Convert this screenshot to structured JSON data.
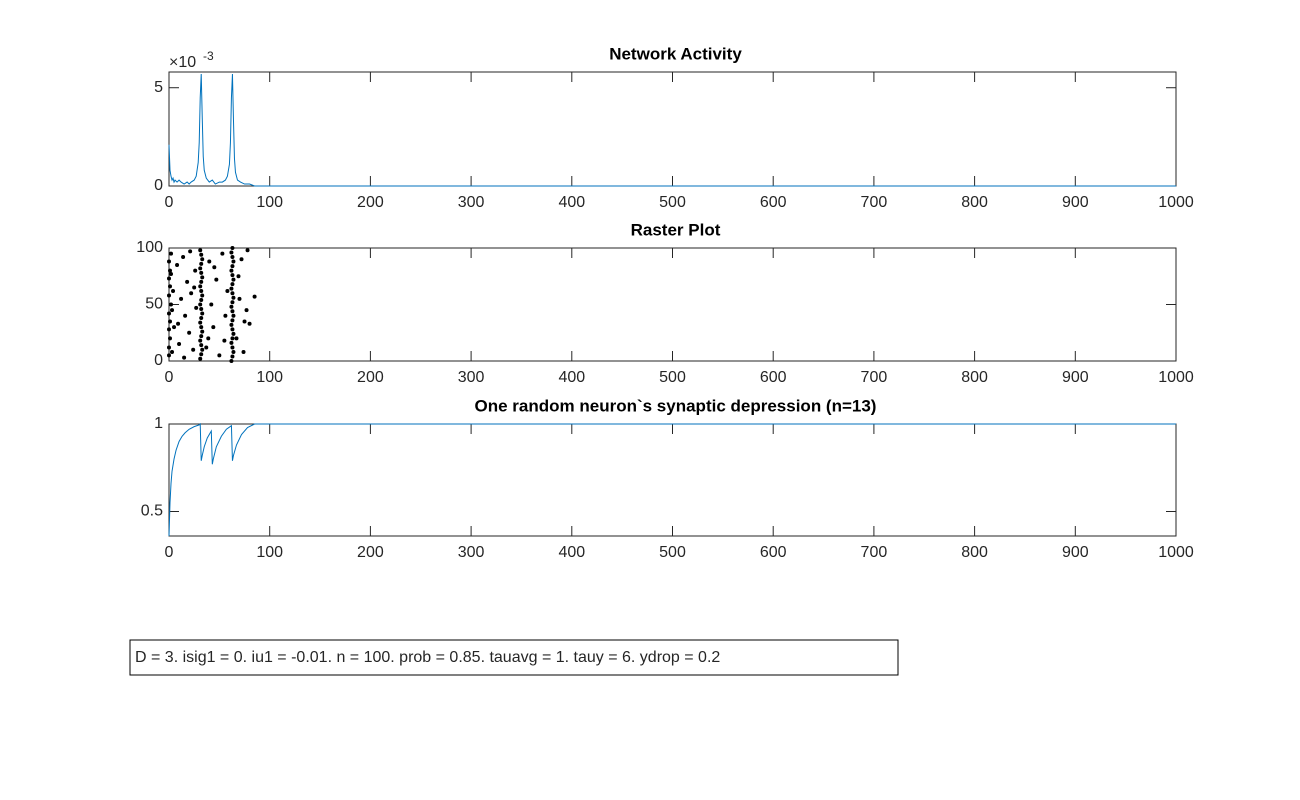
{
  "chart_data": [
    {
      "type": "line",
      "title": "Network Activity",
      "color": "#0072bd",
      "x": [
        0,
        1,
        2,
        3,
        4,
        5,
        6,
        8,
        10,
        12,
        15,
        18,
        20,
        22,
        25,
        27,
        29,
        30,
        31,
        32,
        33,
        34,
        35,
        37,
        40,
        43,
        46,
        50,
        53,
        56,
        58,
        60,
        61,
        62,
        63,
        64,
        65,
        66,
        68,
        71,
        75,
        80,
        85,
        90,
        100,
        1000
      ],
      "values": [
        0.0021,
        0.0008,
        0.0005,
        0.0003,
        0.0004,
        0.0002,
        0.0003,
        0.0002,
        0.0003,
        0.0002,
        0.0001,
        0.0002,
        0.0001,
        0.0002,
        0.0003,
        0.0005,
        0.0012,
        0.0022,
        0.0045,
        0.0057,
        0.0035,
        0.0015,
        0.0008,
        0.0004,
        0.0002,
        0.0003,
        0.0001,
        0.0002,
        0.0002,
        0.0003,
        0.0005,
        0.0011,
        0.0022,
        0.0045,
        0.0057,
        0.0034,
        0.0014,
        0.0007,
        0.0003,
        0.0002,
        0.0001,
        0.0001,
        0,
        0,
        0,
        0
      ],
      "xlim": [
        0,
        1000
      ],
      "xticks": [
        0,
        100,
        200,
        300,
        400,
        500,
        600,
        700,
        800,
        900,
        1000
      ],
      "ylim": [
        0,
        0.0058
      ],
      "yticks": [
        0,
        {
          "value": 0.005,
          "label": "5"
        }
      ],
      "y_multiplier_label": "×10",
      "y_exponent_label": "-3"
    },
    {
      "type": "scatter",
      "title": "Raster Plot",
      "color": "#000000",
      "x": [
        0,
        0,
        1,
        0,
        1,
        0,
        2,
        0,
        1,
        0,
        1,
        0,
        2,
        3,
        4,
        2,
        5,
        3,
        8,
        10,
        12,
        14,
        16,
        18,
        20,
        22,
        24,
        26,
        27,
        9,
        15,
        21,
        25,
        31,
        32,
        33,
        32,
        31,
        32,
        33,
        32,
        31,
        32,
        33,
        32,
        31,
        32,
        33,
        32,
        31,
        32,
        33,
        32,
        31,
        32,
        33,
        32,
        31,
        37,
        40,
        42,
        44,
        47,
        50,
        53,
        56,
        58,
        39,
        45,
        55,
        62,
        63,
        64,
        63,
        62,
        63,
        64,
        63,
        62,
        63,
        64,
        63,
        62,
        63,
        64,
        63,
        62,
        63,
        64,
        63,
        62,
        63,
        64,
        63,
        62,
        63,
        67,
        70,
        72,
        75,
        78,
        80,
        85,
        69,
        74,
        77
      ],
      "y": [
        5,
        12,
        20,
        28,
        35,
        42,
        50,
        58,
        66,
        73,
        80,
        88,
        95,
        8,
        62,
        77,
        30,
        45,
        85,
        15,
        55,
        92,
        40,
        70,
        25,
        60,
        10,
        80,
        47,
        33,
        3,
        97,
        65,
        2,
        6,
        10,
        14,
        18,
        22,
        26,
        30,
        34,
        38,
        42,
        46,
        50,
        54,
        58,
        62,
        66,
        70,
        74,
        78,
        82,
        86,
        90,
        94,
        98,
        12,
        88,
        50,
        30,
        72,
        5,
        95,
        40,
        62,
        20,
        83,
        18,
        0,
        4,
        8,
        12,
        16,
        20,
        24,
        28,
        32,
        36,
        40,
        44,
        48,
        52,
        56,
        60,
        64,
        68,
        72,
        76,
        80,
        84,
        88,
        92,
        96,
        100,
        20,
        55,
        90,
        35,
        98,
        33,
        57,
        75,
        8,
        45
      ],
      "xlim": [
        0,
        1000
      ],
      "xticks": [
        0,
        100,
        200,
        300,
        400,
        500,
        600,
        700,
        800,
        900,
        1000
      ],
      "ylim": [
        0,
        100
      ],
      "yticks": [
        0,
        50,
        100
      ]
    },
    {
      "type": "line",
      "title": "One random neuron`s synaptic depression (n=13)",
      "color": "#0072bd",
      "x": [
        0,
        1,
        2,
        3,
        5,
        7,
        10,
        13,
        16,
        20,
        25,
        30,
        31,
        32,
        33,
        35,
        38,
        42,
        43,
        44,
        47,
        52,
        57,
        62,
        63,
        64,
        67,
        72,
        78,
        85,
        100,
        1000
      ],
      "values": [
        0.36,
        0.55,
        0.66,
        0.73,
        0.8,
        0.85,
        0.9,
        0.93,
        0.95,
        0.97,
        0.985,
        0.995,
        1,
        0.79,
        0.82,
        0.87,
        0.92,
        0.96,
        0.77,
        0.8,
        0.87,
        0.93,
        0.97,
        0.99,
        0.79,
        0.82,
        0.88,
        0.94,
        0.98,
        1,
        1,
        1
      ],
      "xlim": [
        0,
        1000
      ],
      "xticks": [
        0,
        100,
        200,
        300,
        400,
        500,
        600,
        700,
        800,
        900,
        1000
      ],
      "ylim": [
        0.36,
        1
      ],
      "yticks": [
        0.5,
        1
      ]
    }
  ],
  "annotation": "D = 3. isig1 = 0. iu1 = -0.01. n = 100. prob = 0.85. tauavg = 1. tauy = 6. ydrop = 0.2"
}
